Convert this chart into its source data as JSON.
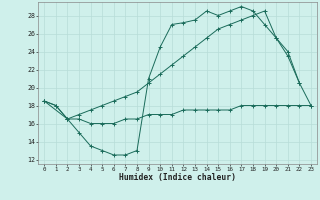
{
  "xlabel": "Humidex (Indice chaleur)",
  "bg_color": "#cff0eb",
  "grid_color": "#b8ddd8",
  "line_color": "#1a6b5a",
  "xlim": [
    -0.5,
    23.5
  ],
  "ylim": [
    11.5,
    29.5
  ],
  "xticks": [
    0,
    1,
    2,
    3,
    4,
    5,
    6,
    7,
    8,
    9,
    10,
    11,
    12,
    13,
    14,
    15,
    16,
    17,
    18,
    19,
    20,
    21,
    22,
    23
  ],
  "yticks": [
    12,
    14,
    16,
    18,
    20,
    22,
    24,
    26,
    28
  ],
  "line1_x": [
    0,
    1,
    2,
    3,
    4,
    5,
    6,
    7,
    8,
    9,
    10,
    11,
    12,
    13,
    14,
    15,
    16,
    17,
    18,
    19,
    20,
    21,
    22
  ],
  "line1_y": [
    18.5,
    18.0,
    16.5,
    15.0,
    13.5,
    13.0,
    12.5,
    12.5,
    13.0,
    21.0,
    24.5,
    27.0,
    27.2,
    27.5,
    28.5,
    28.0,
    28.5,
    29.0,
    28.5,
    27.0,
    25.5,
    23.5,
    20.5
  ],
  "line2_x": [
    0,
    1,
    2,
    3,
    4,
    5,
    6,
    7,
    8,
    9,
    10,
    11,
    12,
    13,
    14,
    15,
    16,
    17,
    18,
    19,
    20,
    21,
    22,
    23
  ],
  "line2_y": [
    18.5,
    18.0,
    16.5,
    16.5,
    16.0,
    16.0,
    16.0,
    16.5,
    16.5,
    17.0,
    17.0,
    17.0,
    17.5,
    17.5,
    17.5,
    17.5,
    17.5,
    18.0,
    18.0,
    18.0,
    18.0,
    18.0,
    18.0,
    18.0
  ],
  "line3_x": [
    0,
    2,
    3,
    4,
    5,
    6,
    7,
    8,
    9,
    10,
    11,
    12,
    13,
    14,
    15,
    16,
    17,
    18,
    19,
    20,
    21,
    22,
    23
  ],
  "line3_y": [
    18.5,
    16.5,
    17.0,
    17.5,
    18.0,
    18.5,
    19.0,
    19.5,
    20.5,
    21.5,
    22.5,
    23.5,
    24.5,
    25.5,
    26.5,
    27.0,
    27.5,
    28.0,
    28.5,
    25.5,
    24.0,
    20.5,
    18.0
  ]
}
